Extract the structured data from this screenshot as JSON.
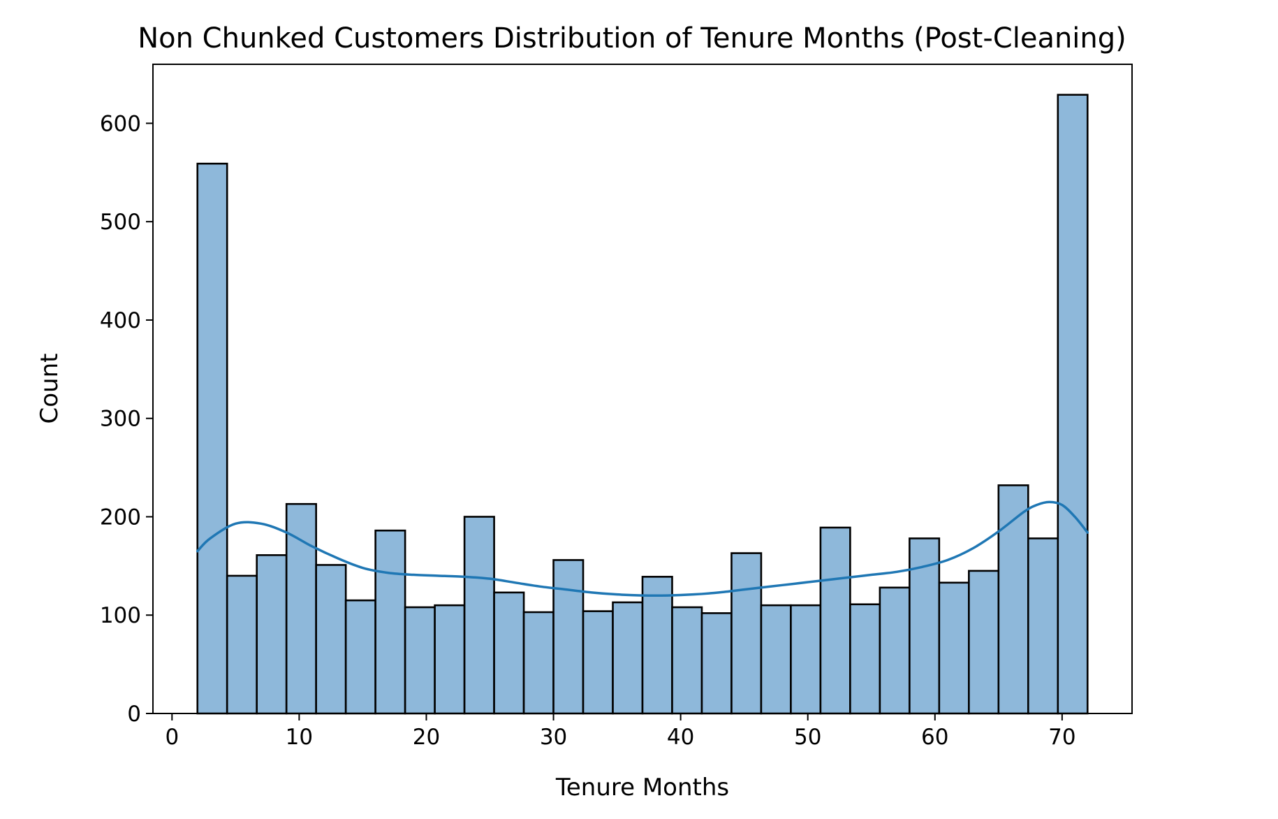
{
  "chart_data": {
    "type": "bar",
    "subtype": "histogram-with-kde",
    "title": "Non Chunked Customers Distribution of Tenure Months (Post-Cleaning)",
    "xlabel": "Tenure Months",
    "ylabel": "Count",
    "xlim": [
      -1.5,
      75.5
    ],
    "ylim": [
      0,
      660
    ],
    "xticks": [
      0,
      10,
      20,
      30,
      40,
      50,
      60,
      70
    ],
    "yticks": [
      0,
      100,
      200,
      300,
      400,
      500,
      600
    ],
    "grid": false,
    "bin_edges": [
      2,
      4.333,
      6.667,
      9,
      11.333,
      13.667,
      16,
      18.333,
      20.667,
      23,
      25.333,
      27.667,
      30,
      32.333,
      34.667,
      37,
      39.333,
      41.667,
      44,
      46.333,
      48.667,
      51,
      53.333,
      55.667,
      58,
      60.333,
      62.667,
      65,
      67.333,
      69.667,
      72
    ],
    "counts": [
      559,
      140,
      161,
      213,
      151,
      115,
      186,
      108,
      110,
      200,
      123,
      103,
      156,
      104,
      113,
      139,
      108,
      102,
      163,
      110,
      110,
      189,
      111,
      128,
      178,
      133,
      145,
      232,
      178,
      629
    ],
    "kde": {
      "x": [
        2,
        3,
        5,
        7,
        9,
        11,
        13,
        15,
        17,
        19,
        21,
        23,
        25,
        27,
        29,
        31,
        33,
        35,
        37,
        39,
        41,
        43,
        45,
        47,
        49,
        51,
        53,
        55,
        57,
        59,
        61,
        63,
        65,
        67,
        68,
        69,
        70,
        71,
        72
      ],
      "y": [
        165,
        178,
        193,
        193,
        184,
        170,
        158,
        148,
        143,
        141,
        140,
        139,
        137,
        133,
        129,
        126,
        123,
        121,
        120,
        120,
        121,
        123,
        126,
        129,
        132,
        135,
        138,
        141,
        144,
        149,
        156,
        168,
        185,
        205,
        212,
        215,
        212,
        200,
        184
      ]
    },
    "colors": {
      "bar_fill": "#8eb8da",
      "bar_edge": "#000000",
      "kde_line": "#1f77b4"
    }
  }
}
